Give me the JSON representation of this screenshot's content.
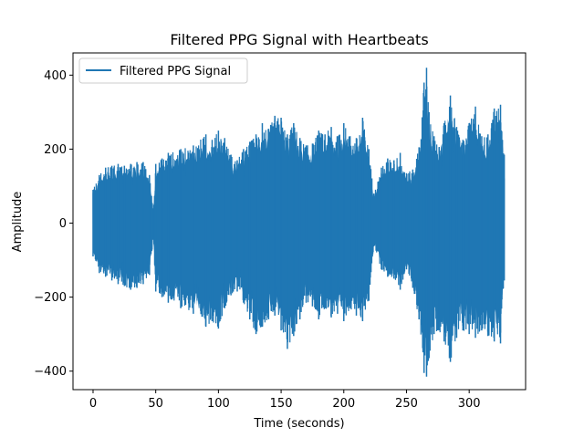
{
  "chart_data": {
    "type": "line",
    "title": "Filtered PPG Signal with Heartbeats",
    "xlabel": "Time (seconds)",
    "ylabel": "Amplitude",
    "xlim": [
      -16,
      345
    ],
    "ylim": [
      -450,
      460
    ],
    "xticks": [
      0,
      50,
      100,
      150,
      200,
      250,
      300
    ],
    "yticks": [
      -400,
      -200,
      0,
      200,
      400
    ],
    "grid": false,
    "legend_position": "top-left",
    "color": "#1f77b4",
    "series": [
      {
        "name": "Filtered PPG Signal",
        "x": [
          0,
          5,
          10,
          15,
          20,
          25,
          30,
          35,
          40,
          45,
          48,
          50,
          55,
          60,
          70,
          80,
          90,
          95,
          100,
          105,
          110,
          115,
          120,
          125,
          130,
          135,
          140,
          145,
          150,
          155,
          160,
          165,
          170,
          175,
          180,
          185,
          190,
          195,
          200,
          205,
          210,
          215,
          220,
          224,
          230,
          235,
          240,
          245,
          250,
          255,
          260,
          264,
          266,
          268,
          272,
          276,
          280,
          285,
          290,
          295,
          300,
          305,
          310,
          315,
          320,
          325,
          328
        ],
        "upper": [
          90,
          130,
          150,
          155,
          160,
          155,
          160,
          165,
          165,
          130,
          40,
          160,
          175,
          190,
          200,
          210,
          240,
          225,
          250,
          230,
          185,
          170,
          200,
          220,
          240,
          270,
          255,
          290,
          285,
          240,
          270,
          230,
          210,
          215,
          250,
          240,
          260,
          235,
          270,
          235,
          230,
          285,
          200,
          80,
          150,
          175,
          170,
          190,
          135,
          145,
          205,
          380,
          420,
          300,
          235,
          205,
          270,
          345,
          260,
          225,
          270,
          315,
          235,
          240,
          310,
          320,
          185
        ],
        "lower": [
          -90,
          -135,
          -145,
          -155,
          -165,
          -170,
          -180,
          -175,
          -165,
          -140,
          -45,
          -185,
          -200,
          -215,
          -230,
          -245,
          -280,
          -265,
          -285,
          -230,
          -195,
          -185,
          -215,
          -260,
          -300,
          -280,
          -260,
          -250,
          -290,
          -340,
          -305,
          -260,
          -215,
          -225,
          -260,
          -230,
          -255,
          -245,
          -265,
          -230,
          -250,
          -265,
          -210,
          -60,
          -125,
          -145,
          -150,
          -180,
          -125,
          -175,
          -260,
          -405,
          -415,
          -365,
          -300,
          -290,
          -320,
          -375,
          -310,
          -290,
          -300,
          -310,
          -290,
          -305,
          -320,
          -325,
          -155
        ]
      }
    ]
  }
}
